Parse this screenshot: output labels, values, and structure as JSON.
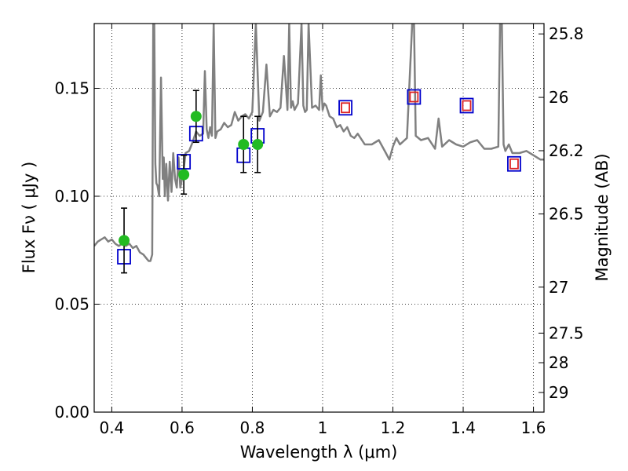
{
  "chart_data": {
    "type": "scatter",
    "xlabel": "Wavelength  λ (μm)",
    "ylabel": "Flux  Fν  ( μJy )",
    "ylabel_right": "Magnitude (AB)",
    "xlim": [
      0.35,
      1.63
    ],
    "ylim": [
      0.0,
      0.18
    ],
    "grid": true,
    "x_ticks": [
      0.4,
      0.6,
      0.8,
      1.0,
      1.2,
      1.4,
      1.6
    ],
    "x_tick_labels": [
      "0.4",
      "0.6",
      "0.8",
      "1",
      "1.2",
      "1.4",
      "1.6"
    ],
    "y_ticks": [
      0.0,
      0.05,
      0.1,
      0.15
    ],
    "y_tick_labels": [
      "0.00",
      "0.05",
      "0.10",
      "0.15"
    ],
    "right_ticks": [
      {
        "label": "25.8",
        "flux": 0.1752
      },
      {
        "label": "26",
        "flux": 0.1458
      },
      {
        "label": "26.2",
        "flux": 0.1211
      },
      {
        "label": "26.5",
        "flux": 0.0918
      },
      {
        "label": "27",
        "flux": 0.0579
      },
      {
        "label": "27.5",
        "flux": 0.0366
      },
      {
        "label": "28",
        "flux": 0.0229
      },
      {
        "label": "29",
        "flux": 0.0091
      }
    ],
    "series": [
      {
        "kind": "line",
        "color": "#808080",
        "x": [
          0.35,
          0.36,
          0.37,
          0.38,
          0.39,
          0.4,
          0.41,
          0.42,
          0.43,
          0.44,
          0.45,
          0.46,
          0.47,
          0.48,
          0.49,
          0.5,
          0.505,
          0.51,
          0.515,
          0.518,
          0.521,
          0.524,
          0.527,
          0.53,
          0.535,
          0.54,
          0.545,
          0.548,
          0.551,
          0.555,
          0.56,
          0.565,
          0.57,
          0.575,
          0.58,
          0.585,
          0.59,
          0.595,
          0.6,
          0.605,
          0.61,
          0.62,
          0.63,
          0.64,
          0.65,
          0.66,
          0.665,
          0.67,
          0.675,
          0.68,
          0.685,
          0.69,
          0.695,
          0.7,
          0.71,
          0.72,
          0.73,
          0.74,
          0.75,
          0.76,
          0.77,
          0.78,
          0.79,
          0.8,
          0.81,
          0.82,
          0.83,
          0.84,
          0.85,
          0.86,
          0.87,
          0.88,
          0.89,
          0.9,
          0.905,
          0.91,
          0.915,
          0.92,
          0.93,
          0.94,
          0.945,
          0.95,
          0.955,
          0.96,
          0.97,
          0.98,
          0.99,
          0.995,
          1.0,
          1.005,
          1.01,
          1.02,
          1.03,
          1.04,
          1.05,
          1.06,
          1.07,
          1.08,
          1.09,
          1.1,
          1.12,
          1.14,
          1.16,
          1.18,
          1.19,
          1.2,
          1.21,
          1.22,
          1.24,
          1.255,
          1.26,
          1.265,
          1.28,
          1.3,
          1.32,
          1.33,
          1.34,
          1.36,
          1.38,
          1.4,
          1.42,
          1.44,
          1.46,
          1.48,
          1.5,
          1.505,
          1.51,
          1.515,
          1.52,
          1.53,
          1.54,
          1.56,
          1.58,
          1.6,
          1.62,
          1.63
        ],
        "y": [
          0.077,
          0.079,
          0.08,
          0.081,
          0.079,
          0.08,
          0.078,
          0.077,
          0.078,
          0.077,
          0.078,
          0.076,
          0.077,
          0.074,
          0.073,
          0.071,
          0.07,
          0.07,
          0.073,
          0.18,
          0.18,
          0.115,
          0.106,
          0.105,
          0.1,
          0.155,
          0.108,
          0.118,
          0.1,
          0.115,
          0.098,
          0.116,
          0.102,
          0.12,
          0.108,
          0.104,
          0.118,
          0.104,
          0.108,
          0.113,
          0.12,
          0.121,
          0.125,
          0.13,
          0.128,
          0.129,
          0.158,
          0.131,
          0.127,
          0.132,
          0.128,
          0.18,
          0.127,
          0.13,
          0.131,
          0.134,
          0.132,
          0.133,
          0.139,
          0.135,
          0.137,
          0.138,
          0.136,
          0.139,
          0.18,
          0.135,
          0.139,
          0.161,
          0.137,
          0.14,
          0.139,
          0.141,
          0.165,
          0.14,
          0.18,
          0.141,
          0.144,
          0.14,
          0.143,
          0.18,
          0.142,
          0.139,
          0.14,
          0.18,
          0.141,
          0.142,
          0.14,
          0.156,
          0.14,
          0.143,
          0.142,
          0.137,
          0.136,
          0.132,
          0.133,
          0.13,
          0.132,
          0.128,
          0.127,
          0.129,
          0.124,
          0.124,
          0.126,
          0.12,
          0.117,
          0.123,
          0.127,
          0.124,
          0.127,
          0.18,
          0.18,
          0.128,
          0.126,
          0.127,
          0.122,
          0.136,
          0.123,
          0.126,
          0.124,
          0.123,
          0.125,
          0.126,
          0.122,
          0.122,
          0.123,
          0.18,
          0.18,
          0.124,
          0.121,
          0.124,
          0.12,
          0.12,
          0.121,
          0.119,
          0.117,
          0.117
        ]
      },
      {
        "kind": "open-squares",
        "edge_color": "#0000cc",
        "x": [
          0.435,
          0.605,
          0.64,
          0.775,
          0.815
        ],
        "y": [
          0.072,
          0.116,
          0.129,
          0.119,
          0.128
        ]
      },
      {
        "kind": "filled-circles-with-errors",
        "color": "#22bb22",
        "x": [
          0.435,
          0.605,
          0.64,
          0.775,
          0.815
        ],
        "y": [
          0.0795,
          0.11,
          0.137,
          0.124,
          0.124
        ],
        "yerr": [
          0.015,
          0.009,
          0.012,
          0.013,
          0.013
        ]
      },
      {
        "kind": "double-squares",
        "outer_color": "#0000cc",
        "inner_color": "#dd2222",
        "x": [
          1.065,
          1.26,
          1.41,
          1.545
        ],
        "y": [
          0.141,
          0.146,
          0.142,
          0.115
        ]
      }
    ]
  }
}
